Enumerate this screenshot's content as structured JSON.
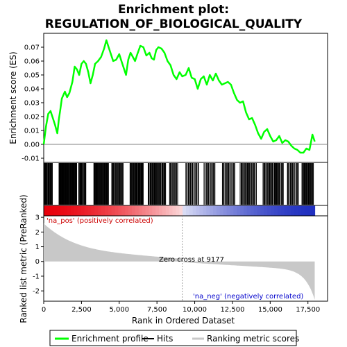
{
  "chart_data": {
    "type": "line",
    "title_line1": "Enrichment plot:",
    "title_line2": "REGULATION_OF_BIOLOGICAL_QUALITY",
    "xlabel": "Rank in Ordered Dataset",
    "ylabel_top": "Enrichment score (ES)",
    "ylabel_bottom": "Ranked list metric (PreRanked)",
    "xlim": [
      0,
      18800
    ],
    "es_ylim": [
      -0.013,
      0.08
    ],
    "metric_ylim": [
      -2.7,
      3.1
    ],
    "x_ticks": [
      0,
      2500,
      5000,
      7500,
      10000,
      12500,
      15000,
      17500
    ],
    "x_tick_labels": [
      "0",
      "2,500",
      "5,000",
      "7,500",
      "10,000",
      "12,500",
      "15,000",
      "17,500"
    ],
    "es_ticks": [
      -0.01,
      0.0,
      0.01,
      0.02,
      0.03,
      0.04,
      0.05,
      0.06,
      0.07
    ],
    "es_tick_labels": [
      "-0.01",
      "0.00",
      "0.01",
      "0.02",
      "0.03",
      "0.04",
      "0.05",
      "0.06",
      "0.07"
    ],
    "metric_ticks": [
      -2,
      -1,
      0,
      1,
      2,
      3
    ],
    "metric_tick_labels": [
      "-2",
      "-1",
      "0",
      "1",
      "2",
      "3"
    ],
    "enrichment_profile": {
      "name": "Enrichment profile",
      "color": "#00ff00",
      "x": [
        0,
        150,
        300,
        450,
        600,
        750,
        900,
        1000,
        1100,
        1200,
        1400,
        1550,
        1700,
        1900,
        2050,
        2200,
        2350,
        2500,
        2650,
        2800,
        2950,
        3100,
        3250,
        3400,
        3600,
        3800,
        4000,
        4150,
        4300,
        4450,
        4600,
        4800,
        5000,
        5150,
        5300,
        5450,
        5600,
        5750,
        5900,
        6050,
        6200,
        6400,
        6600,
        6800,
        7000,
        7150,
        7300,
        7450,
        7600,
        7800,
        8000,
        8200,
        8400,
        8600,
        8800,
        9000,
        9177,
        9400,
        9600,
        9800,
        10000,
        10200,
        10400,
        10600,
        10800,
        11000,
        11200,
        11400,
        11600,
        11800,
        12000,
        12200,
        12400,
        12600,
        12800,
        13000,
        13200,
        13400,
        13600,
        13800,
        14000,
        14200,
        14400,
        14600,
        14800,
        15000,
        15200,
        15400,
        15600,
        15800,
        16000,
        16200,
        16400,
        16600,
        16800,
        17000,
        17200,
        17400,
        17600,
        17800,
        17950
      ],
      "y": [
        0.0,
        0.013,
        0.022,
        0.024,
        0.019,
        0.014,
        0.008,
        0.018,
        0.025,
        0.033,
        0.038,
        0.034,
        0.037,
        0.045,
        0.056,
        0.054,
        0.05,
        0.058,
        0.06,
        0.058,
        0.052,
        0.044,
        0.05,
        0.058,
        0.06,
        0.063,
        0.069,
        0.075,
        0.07,
        0.065,
        0.06,
        0.061,
        0.065,
        0.06,
        0.055,
        0.05,
        0.061,
        0.066,
        0.063,
        0.06,
        0.065,
        0.071,
        0.07,
        0.064,
        0.066,
        0.062,
        0.061,
        0.068,
        0.07,
        0.069,
        0.066,
        0.06,
        0.057,
        0.05,
        0.047,
        0.052,
        0.049,
        0.05,
        0.055,
        0.048,
        0.047,
        0.04,
        0.047,
        0.049,
        0.043,
        0.05,
        0.046,
        0.051,
        0.046,
        0.043,
        0.044,
        0.045,
        0.043,
        0.037,
        0.032,
        0.03,
        0.031,
        0.023,
        0.018,
        0.019,
        0.014,
        0.008,
        0.004,
        0.009,
        0.011,
        0.006,
        0.002,
        0.003,
        0.006,
        0.001,
        0.003,
        0.002,
        -0.001,
        -0.003,
        -0.004,
        -0.006,
        -0.006,
        -0.003,
        -0.004,
        0.007,
        0.002
      ]
    },
    "hits_legend": "Hits",
    "metric_legend": "Ranking metric scores",
    "positive_label": "'na_pos' (positively correlated)",
    "negative_label": "'na_neg' (negatively correlated)",
    "zero_cross_label": "Zero cross at 9177",
    "zero_cross": 9177,
    "total_genes": 17950,
    "hit_clusters": [
      {
        "start": 30,
        "end": 600,
        "n": 18
      },
      {
        "start": 1000,
        "end": 2200,
        "n": 45
      },
      {
        "start": 2300,
        "end": 2800,
        "n": 14
      },
      {
        "start": 3300,
        "end": 4300,
        "n": 35
      },
      {
        "start": 4500,
        "end": 5300,
        "n": 20
      },
      {
        "start": 5700,
        "end": 6600,
        "n": 28
      },
      {
        "start": 6900,
        "end": 8100,
        "n": 30
      },
      {
        "start": 8300,
        "end": 8900,
        "n": 12
      },
      {
        "start": 9400,
        "end": 10300,
        "n": 16
      },
      {
        "start": 10600,
        "end": 11400,
        "n": 13
      },
      {
        "start": 11800,
        "end": 12700,
        "n": 16
      },
      {
        "start": 13000,
        "end": 14100,
        "n": 22
      },
      {
        "start": 14500,
        "end": 15900,
        "n": 28
      },
      {
        "start": 16100,
        "end": 16900,
        "n": 14
      },
      {
        "start": 17100,
        "end": 17900,
        "n": 20
      }
    ],
    "colors": {
      "positive": "#e8000b",
      "negative": "#2030c0",
      "metric_fill": "#c8c8c8",
      "zero_line": "#a0a0a0"
    }
  }
}
